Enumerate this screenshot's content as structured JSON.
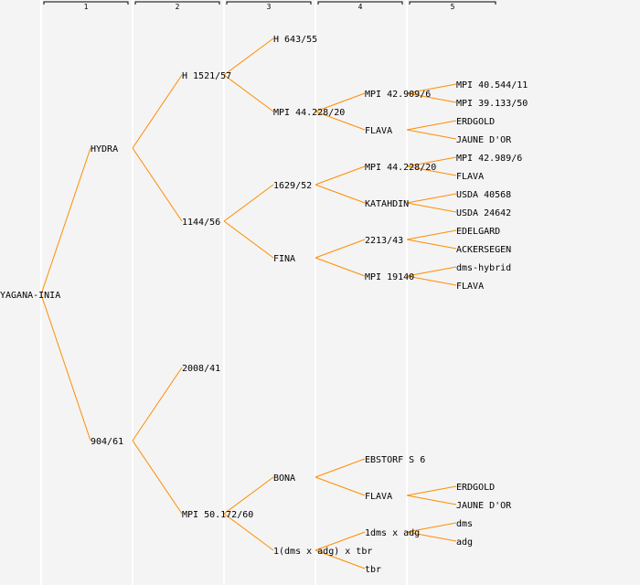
{
  "columns": [
    "1",
    "2",
    "3",
    "4",
    "5"
  ],
  "line_color": "#ff8c00",
  "tree": {
    "label": "YAGANA-INIA",
    "children": [
      {
        "label": "HYDRA",
        "children": [
          {
            "label": "H 1521/57",
            "children": [
              {
                "label": "H 643/55",
                "children": []
              },
              {
                "label": "MPI 44.228/20",
                "children": [
                  {
                    "label": "MPI 42.909/6",
                    "children": [
                      {
                        "label": "MPI 40.544/11"
                      },
                      {
                        "label": "MPI 39.133/50"
                      }
                    ]
                  },
                  {
                    "label": "FLAVA",
                    "children": [
                      {
                        "label": "ERDGOLD"
                      },
                      {
                        "label": "JAUNE D'OR"
                      }
                    ]
                  }
                ]
              }
            ]
          },
          {
            "label": "1144/56",
            "children": [
              {
                "label": "1629/52",
                "children": [
                  {
                    "label": "MPI 44.228/20",
                    "children": [
                      {
                        "label": "MPI 42.989/6"
                      },
                      {
                        "label": "FLAVA"
                      }
                    ]
                  },
                  {
                    "label": "KATAHDIN",
                    "children": [
                      {
                        "label": "USDA 40568"
                      },
                      {
                        "label": "USDA 24642"
                      }
                    ]
                  }
                ]
              },
              {
                "label": "FINA",
                "children": [
                  {
                    "label": "2213/43",
                    "children": [
                      {
                        "label": "EDELGARD"
                      },
                      {
                        "label": "ACKERSEGEN"
                      }
                    ]
                  },
                  {
                    "label": "MPI 19140",
                    "children": [
                      {
                        "label": "dms-hybrid"
                      },
                      {
                        "label": "FLAVA"
                      }
                    ]
                  }
                ]
              }
            ]
          }
        ]
      },
      {
        "label": "904/61",
        "children": [
          {
            "label": "2008/41",
            "children": []
          },
          {
            "label": "MPI 50.172/60",
            "children": [
              null,
              null,
              {
                "label": "BONA",
                "children": [
                  {
                    "label": "EBSTORF S 6",
                    "children": []
                  },
                  {
                    "label": "FLAVA",
                    "children": [
                      {
                        "label": "ERDGOLD"
                      },
                      {
                        "label": "JAUNE D'OR"
                      }
                    ]
                  }
                ]
              },
              {
                "label": "1(dms x adg) x tbr",
                "children": [
                  {
                    "label": "1dms x adg",
                    "children": [
                      {
                        "label": "dms"
                      },
                      {
                        "label": "adg"
                      }
                    ]
                  },
                  {
                    "label": "tbr",
                    "children": []
                  }
                ]
              }
            ]
          }
        ]
      }
    ]
  }
}
